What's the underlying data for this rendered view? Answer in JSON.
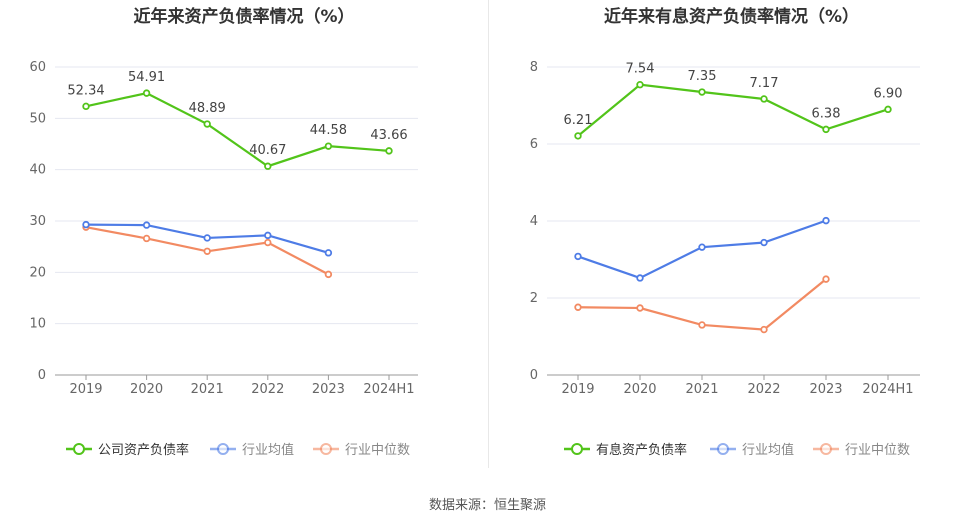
{
  "footer": {
    "source": "数据来源：恒生聚源"
  },
  "chart_data": [
    {
      "type": "line",
      "title": "近年来资产负债率情况（%）",
      "categories": [
        "2019",
        "2020",
        "2021",
        "2022",
        "2023",
        "2024H1"
      ],
      "ylim": [
        0,
        60
      ],
      "yticks": [
        0,
        10,
        20,
        30,
        40,
        50,
        60
      ],
      "grid": true,
      "legend_position": "bottom",
      "series": [
        {
          "name": "公司资产负债率",
          "color": "#52c41a",
          "values": [
            52.34,
            54.91,
            48.89,
            40.67,
            44.58,
            43.66
          ],
          "labels": [
            "52.34",
            "54.91",
            "48.89",
            "40.67",
            "44.58",
            "43.66"
          ]
        },
        {
          "name": "行业均值",
          "color": "#4e7ce6",
          "values": [
            29.3,
            29.2,
            26.7,
            27.2,
            23.8,
            null
          ]
        },
        {
          "name": "行业中位数",
          "color": "#f28a62",
          "values": [
            28.8,
            26.6,
            24.1,
            25.8,
            19.6,
            null
          ]
        }
      ]
    },
    {
      "type": "line",
      "title": "近年来有息资产负债率情况（%）",
      "categories": [
        "2019",
        "2020",
        "2021",
        "2022",
        "2023",
        "2024H1"
      ],
      "ylim": [
        0,
        8
      ],
      "yticks": [
        0,
        2,
        4,
        6,
        8
      ],
      "grid": true,
      "legend_position": "bottom",
      "series": [
        {
          "name": "有息资产负债率",
          "color": "#52c41a",
          "values": [
            6.21,
            7.54,
            7.35,
            7.17,
            6.38,
            6.9
          ],
          "labels": [
            "6.21",
            "7.54",
            "7.35",
            "7.17",
            "6.38",
            "6.90"
          ]
        },
        {
          "name": "行业均值",
          "color": "#4e7ce6",
          "values": [
            3.08,
            2.52,
            3.32,
            3.44,
            4.01,
            null
          ]
        },
        {
          "name": "行业中位数",
          "color": "#f28a62",
          "values": [
            1.76,
            1.74,
            1.3,
            1.18,
            2.49,
            null
          ]
        }
      ]
    }
  ]
}
